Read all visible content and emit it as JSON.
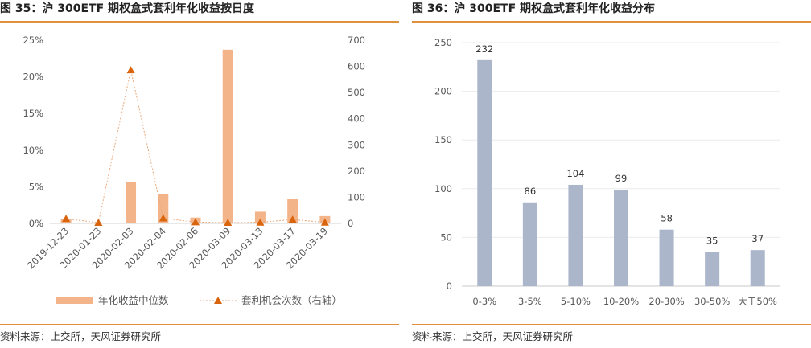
{
  "left_panel": {
    "title": "图 35：沪 300ETF 期权盒式套利年化收益按日度",
    "source": "资料来源：上交所，天风证券研究所"
  },
  "right_panel": {
    "title": "图 36：沪 300ETF 期权盒式套利年化收益分布",
    "source": "资料来源：上交所，天风证券研究所"
  },
  "colors": {
    "bar_orange": "#f3b48a",
    "line_orange": "#e8a97b",
    "marker_orange": "#d9640b",
    "bar_gray": "#abb6ca",
    "rule": "#e0913f"
  },
  "chart_data": [
    {
      "type": "bar",
      "categories": [
        "2019-12-23",
        "2020-01-23",
        "2020-02-03",
        "2020-02-04",
        "2020-02-06",
        "2020-03-09",
        "2020-03-13",
        "2020-03-17",
        "2020-03-19"
      ],
      "series": [
        {
          "name": "年化收益中位数",
          "type": "bar",
          "axis": "left",
          "values": [
            0.6,
            0.0,
            5.7,
            4.0,
            0.8,
            23.7,
            1.6,
            3.3,
            1.0
          ]
        },
        {
          "name": "套利机会次数（右轴）",
          "type": "line",
          "axis": "right",
          "values": [
            18,
            3,
            586,
            20,
            5,
            3,
            4,
            15,
            4
          ]
        }
      ],
      "left_axis": {
        "ylim": [
          0,
          25
        ],
        "ticks": [
          "0%",
          "5%",
          "10%",
          "15%",
          "20%",
          "25%"
        ]
      },
      "right_axis": {
        "ylim": [
          0,
          700
        ],
        "ticks": [
          "0",
          "100",
          "200",
          "300",
          "400",
          "500",
          "600",
          "700"
        ]
      },
      "legend": {
        "placement": "bottom"
      }
    },
    {
      "type": "bar",
      "categories": [
        "0-3%",
        "3-5%",
        "5-10%",
        "10-20%",
        "20-30%",
        "30-50%",
        "大于50%"
      ],
      "values": [
        232,
        86,
        104,
        99,
        58,
        35,
        37
      ],
      "ylim": [
        0,
        250
      ],
      "ticks": [
        "0",
        "50",
        "100",
        "150",
        "200",
        "250"
      ],
      "grid": true
    }
  ]
}
